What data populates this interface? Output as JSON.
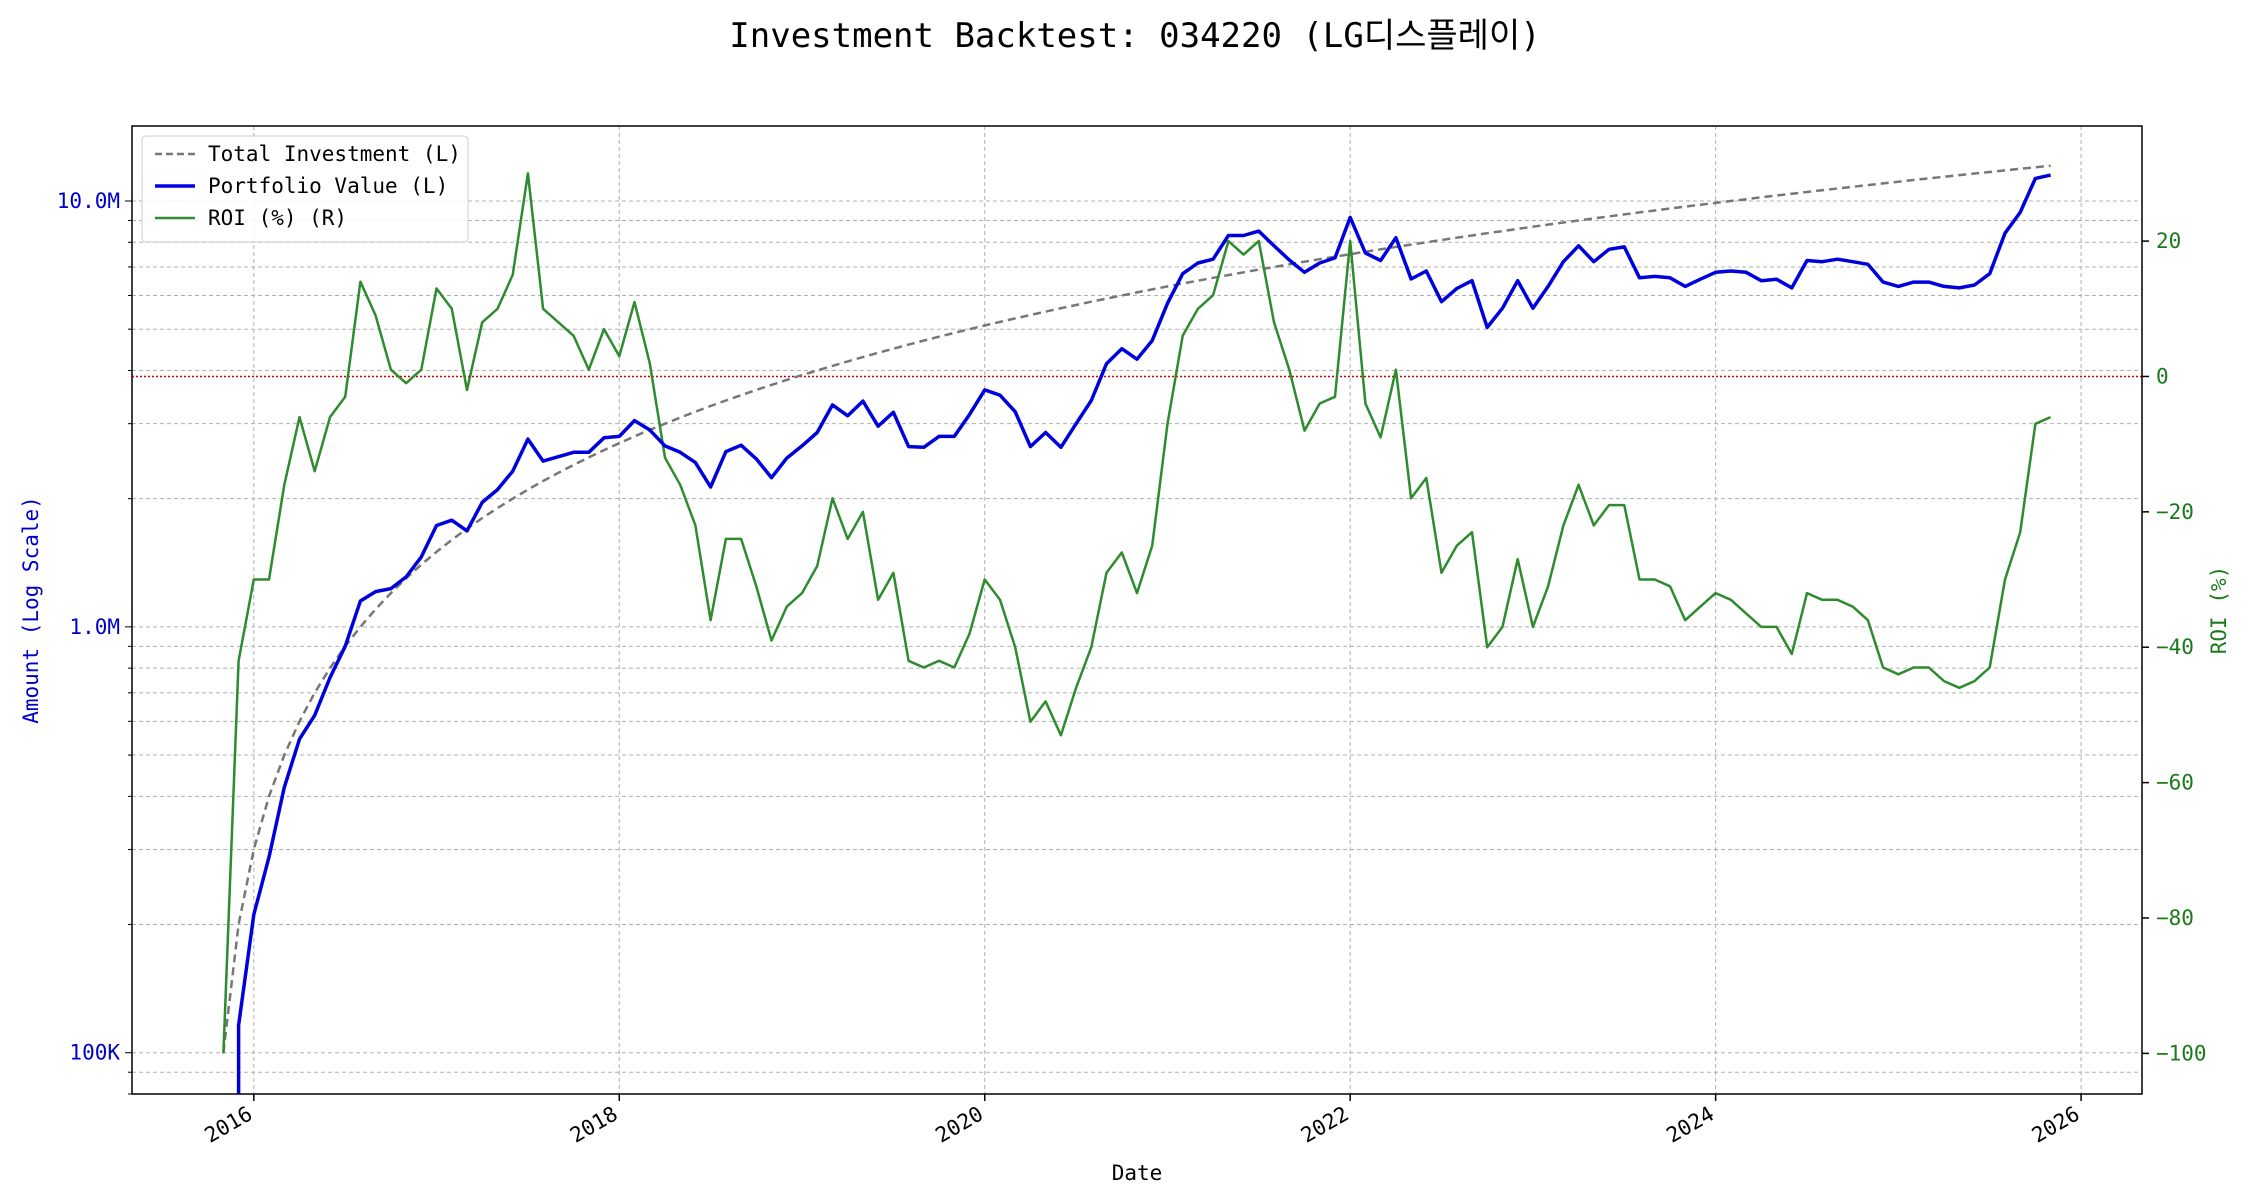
{
  "chart_data": {
    "type": "line",
    "title": "Investment Backtest: 034220 (LG디스플레이)",
    "xlabel": "Date",
    "ylabel_left": "Amount (Log Scale)",
    "ylabel_right": "ROI (%)",
    "x_range": [
      "2015-05-01",
      "2026-05-01"
    ],
    "x_ticks": [
      "2016",
      "2018",
      "2020",
      "2022",
      "2024",
      "2026"
    ],
    "y_left_scale": "log",
    "y_left_range": [
      80000,
      15000000
    ],
    "y_left_ticks": [
      {
        "value": 100000,
        "label": "100K"
      },
      {
        "value": 1000000,
        "label": "1.0M"
      },
      {
        "value": 10000000,
        "label": "10.0M"
      }
    ],
    "y_right_range": [
      -106,
      37
    ],
    "y_right_ticks": [
      {
        "value": -100,
        "label": "−100"
      },
      {
        "value": -80,
        "label": "−80"
      },
      {
        "value": -60,
        "label": "−60"
      },
      {
        "value": -40,
        "label": "−40"
      },
      {
        "value": -20,
        "label": "−20"
      },
      {
        "value": 0,
        "label": "0"
      },
      {
        "value": 20,
        "label": "20"
      }
    ],
    "zero_line": {
      "axis": "right",
      "value": 0,
      "color": "#cc0000"
    },
    "grid": true,
    "legend_position": "top-left",
    "colors": {
      "investment": "#777777",
      "portfolio": "#0000dd",
      "roi": "#2e8b2e",
      "left_axis": "#0000cc",
      "right_axis": "#1a7a1a"
    },
    "x": [
      "2015-11",
      "2015-12",
      "2016-01",
      "2016-02",
      "2016-03",
      "2016-04",
      "2016-05",
      "2016-06",
      "2016-07",
      "2016-08",
      "2016-09",
      "2016-10",
      "2016-11",
      "2016-12",
      "2017-01",
      "2017-02",
      "2017-03",
      "2017-04",
      "2017-05",
      "2017-06",
      "2017-07",
      "2017-08",
      "2017-09",
      "2017-10",
      "2017-11",
      "2017-12",
      "2018-01",
      "2018-02",
      "2018-03",
      "2018-04",
      "2018-05",
      "2018-06",
      "2018-07",
      "2018-08",
      "2018-09",
      "2018-10",
      "2018-11",
      "2018-12",
      "2019-01",
      "2019-02",
      "2019-03",
      "2019-04",
      "2019-05",
      "2019-06",
      "2019-07",
      "2019-08",
      "2019-09",
      "2019-10",
      "2019-11",
      "2019-12",
      "2020-01",
      "2020-02",
      "2020-03",
      "2020-04",
      "2020-05",
      "2020-06",
      "2020-07",
      "2020-08",
      "2020-09",
      "2020-10",
      "2020-11",
      "2020-12",
      "2021-01",
      "2021-02",
      "2021-03",
      "2021-04",
      "2021-05",
      "2021-06",
      "2021-07",
      "2021-08",
      "2021-09",
      "2021-10",
      "2021-11",
      "2021-12",
      "2022-01",
      "2022-02",
      "2022-03",
      "2022-04",
      "2022-05",
      "2022-06",
      "2022-07",
      "2022-08",
      "2022-09",
      "2022-10",
      "2022-11",
      "2022-12",
      "2023-01",
      "2023-02",
      "2023-03",
      "2023-04",
      "2023-05",
      "2023-06",
      "2023-07",
      "2023-08",
      "2023-09",
      "2023-10",
      "2023-11",
      "2023-12",
      "2024-01",
      "2024-02",
      "2024-03",
      "2024-04",
      "2024-05",
      "2024-06",
      "2024-07",
      "2024-08",
      "2024-09",
      "2024-10",
      "2024-11",
      "2024-12",
      "2025-01",
      "2025-02",
      "2025-03",
      "2025-04",
      "2025-05",
      "2025-06",
      "2025-07",
      "2025-08",
      "2025-09",
      "2025-10",
      "2025-11"
    ],
    "series": [
      {
        "name": "Total Investment (L)",
        "axis": "left",
        "style": "dashed",
        "values": [
          100000,
          200000,
          300000,
          400000,
          500000,
          600000,
          700000,
          800000,
          900000,
          1000000,
          1100000,
          1200000,
          1300000,
          1400000,
          1500000,
          1600000,
          1700000,
          1800000,
          1900000,
          2000000,
          2100000,
          2200000,
          2300000,
          2400000,
          2500000,
          2600000,
          2700000,
          2800000,
          2900000,
          3000000,
          3100000,
          3200000,
          3300000,
          3400000,
          3500000,
          3600000,
          3700000,
          3800000,
          3900000,
          4000000,
          4100000,
          4200000,
          4300000,
          4400000,
          4500000,
          4600000,
          4700000,
          4800000,
          4900000,
          5000000,
          5100000,
          5200000,
          5300000,
          5400000,
          5500000,
          5600000,
          5700000,
          5800000,
          5900000,
          6000000,
          6100000,
          6200000,
          6300000,
          6400000,
          6500000,
          6600000,
          6700000,
          6800000,
          6900000,
          7000000,
          7100000,
          7200000,
          7300000,
          7400000,
          7500000,
          7600000,
          7700000,
          7800000,
          7900000,
          8000000,
          8100000,
          8200000,
          8300000,
          8400000,
          8500000,
          8600000,
          8700000,
          8800000,
          8900000,
          9000000,
          9100000,
          9200000,
          9300000,
          9400000,
          9500000,
          9600000,
          9700000,
          9800000,
          9900000,
          10000000,
          10100000,
          10200000,
          10300000,
          10400000,
          10500000,
          10600000,
          10700000,
          10800000,
          10900000,
          11000000,
          11100000,
          11200000,
          11300000,
          11400000,
          11500000,
          11600000,
          11700000,
          11800000,
          11900000,
          12000000,
          12100000
        ]
      },
      {
        "name": "Portfolio Value (L)",
        "axis": "left",
        "style": "solid",
        "values": [
          null,
          116000,
          211000,
          288000,
          420000,
          545000,
          620000,
          760000,
          900000,
          1150000,
          1210000,
          1230000,
          1310000,
          1460000,
          1730000,
          1780000,
          1680000,
          1960000,
          2100000,
          2320000,
          2760000,
          2450000,
          2510000,
          2570000,
          2570000,
          2780000,
          2800000,
          3050000,
          2900000,
          2660000,
          2570000,
          2430000,
          2130000,
          2580000,
          2670000,
          2480000,
          2240000,
          2490000,
          2660000,
          2860000,
          3320000,
          3130000,
          3390000,
          2960000,
          3190000,
          2650000,
          2640000,
          2800000,
          2800000,
          3150000,
          3600000,
          3500000,
          3200000,
          2650000,
          2860000,
          2640000,
          3000000,
          3400000,
          4150000,
          4500000,
          4250000,
          4700000,
          5750000,
          6750000,
          7150000,
          7300000,
          8300000,
          8300000,
          8500000,
          7850000,
          7270000,
          6800000,
          7150000,
          7350000,
          9150000,
          7550000,
          7250000,
          8200000,
          6560000,
          6850000,
          5800000,
          6230000,
          6500000,
          5050000,
          5600000,
          6500000,
          5600000,
          6300000,
          7200000,
          7850000,
          7200000,
          7700000,
          7800000,
          6600000,
          6650000,
          6600000,
          6300000,
          6550000,
          6800000,
          6850000,
          6800000,
          6500000,
          6550000,
          6250000,
          7250000,
          7200000,
          7300000,
          7200000,
          7100000,
          6450000,
          6300000,
          6450000,
          6450000,
          6300000,
          6250000,
          6350000,
          6750000,
          8400000,
          9400000,
          11300000,
          11500000
        ]
      },
      {
        "name": "ROI (%) (R)",
        "axis": "right",
        "style": "solid",
        "values": [
          -100,
          -42,
          -30,
          -30,
          -16,
          -6,
          -14,
          -6,
          -3,
          14,
          9,
          1,
          -1,
          1,
          13,
          10,
          -2,
          8,
          10,
          15,
          30,
          10,
          8,
          6,
          1,
          7,
          3,
          11,
          2,
          -12,
          -16,
          -22,
          -36,
          -24,
          -24,
          -31,
          -39,
          -34,
          -32,
          -28,
          -18,
          -24,
          -20,
          -33,
          -29,
          -42,
          -43,
          -42,
          -43,
          -38,
          -30,
          -33,
          -40,
          -51,
          -48,
          -53,
          -46,
          -40,
          -29,
          -26,
          -32,
          -25,
          -7,
          6,
          10,
          12,
          20,
          18,
          20,
          8,
          1,
          -8,
          -4,
          -3,
          20,
          -4,
          -9,
          1,
          -18,
          -15,
          -29,
          -25,
          -23,
          -40,
          -37,
          -27,
          -37,
          -31,
          -22,
          -16,
          -22,
          -19,
          -19,
          -30,
          -30,
          -31,
          -36,
          -34,
          -32,
          -33,
          -35,
          -37,
          -37,
          -41,
          -32,
          -33,
          -33,
          -34,
          -36,
          -43,
          -44,
          -43,
          -43,
          -45,
          -46,
          -45,
          -43,
          -30,
          -23,
          -7,
          -6
        ]
      }
    ]
  }
}
